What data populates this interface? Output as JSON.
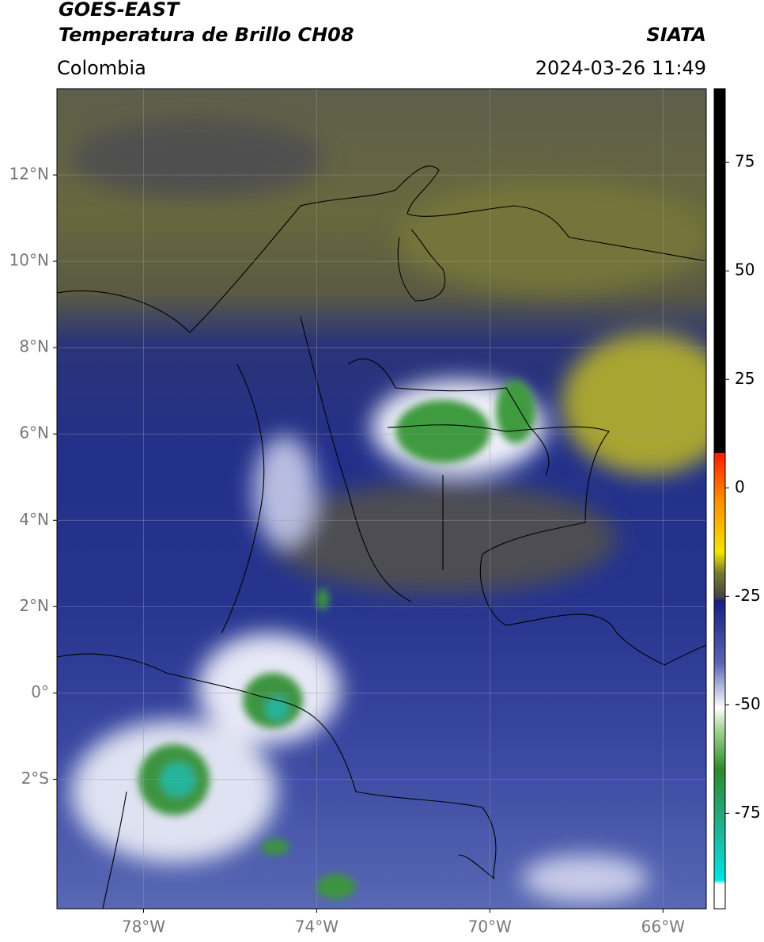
{
  "header": {
    "title": "GOES-EAST",
    "subtitle": "Temperatura de Brillo CH08",
    "source": "SIATA",
    "region": "Colombia",
    "datetime": "2024-03-26 11:49"
  },
  "map": {
    "xlim": [
      -80,
      -65
    ],
    "ylim": [
      -5,
      14
    ],
    "xticks": [
      {
        "value": -78,
        "label": "78°W"
      },
      {
        "value": -74,
        "label": "74°W"
      },
      {
        "value": -70,
        "label": "70°W"
      },
      {
        "value": -66,
        "label": "66°W"
      }
    ],
    "yticks": [
      {
        "value": 12,
        "label": "12°N"
      },
      {
        "value": 10,
        "label": "10°N"
      },
      {
        "value": 8,
        "label": "8°N"
      },
      {
        "value": 6,
        "label": "6°N"
      },
      {
        "value": 4,
        "label": "4°N"
      },
      {
        "value": 2,
        "label": "2°N"
      },
      {
        "value": 0,
        "label": "0°"
      },
      {
        "value": -2,
        "label": "2°S"
      }
    ],
    "grid": true
  },
  "colorbar": {
    "clim": [
      -97,
      92
    ],
    "ticks": [
      75,
      50,
      25,
      0,
      -25,
      -50,
      -75
    ]
  }
}
